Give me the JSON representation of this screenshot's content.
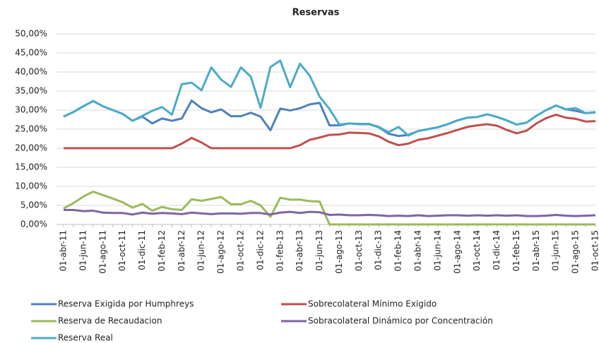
{
  "chart_data": {
    "type": "line",
    "title": "Reservas",
    "categories": [
      "01-abr-11",
      null,
      "01-jun-11",
      null,
      "01-ago-11",
      null,
      "01-oct-11",
      null,
      "01-dic-11",
      null,
      "01-feb-12",
      null,
      "01-abr-12",
      null,
      "01-jun-12",
      null,
      "01-ago-12",
      null,
      "01-oct-12",
      null,
      "01-dic-12",
      null,
      "01-feb-13",
      null,
      "01-abr-13",
      null,
      "01-jun-13",
      null,
      "01-ago-13",
      null,
      "01-oct-13",
      null,
      "01-dic-13",
      null,
      "01-feb-14",
      null,
      "01-abr-14",
      null,
      "01-jun-14",
      null,
      "01-ago-14",
      null,
      "01-oct-14",
      null,
      "01-dic-14",
      null,
      "01-feb-15",
      null,
      "01-abr-15",
      null,
      "01-jun-15",
      null,
      "01-ago-15",
      null,
      "01-oct-15"
    ],
    "series": [
      {
        "name": "Reserva Exigida por Humphreys",
        "color": "#4f81bd",
        "values": [
          28.3,
          29.5,
          31,
          32.4,
          31,
          30,
          29,
          27.2,
          28.3,
          26.5,
          27.8,
          27.2,
          27.8,
          32.5,
          30.5,
          29.4,
          30.2,
          28.4,
          28.4,
          29.3,
          28.3,
          24.7,
          30.4,
          29.9,
          30.5,
          31.5,
          31.9,
          26,
          26,
          26.5,
          26.3,
          26.3,
          25.5,
          23.8,
          23.2,
          23.5,
          24.5,
          25,
          25.5,
          26.3,
          27.3,
          28,
          28.2,
          28.9,
          28.2,
          27.3,
          26.2,
          26.7,
          28.5,
          30,
          31.2,
          30.2,
          29.8,
          29.2,
          29.4
        ]
      },
      {
        "name": "Sobrecolateral Mínimo Exigido",
        "color": "#c0504d",
        "values": [
          20,
          20,
          20,
          20,
          20,
          20,
          20,
          20,
          20,
          20,
          20,
          20,
          21.2,
          22.7,
          21.5,
          20,
          20,
          20,
          20,
          20,
          20,
          20,
          20,
          20,
          20.8,
          22.2,
          22.8,
          23.5,
          23.6,
          24.1,
          24,
          23.9,
          23.1,
          21.7,
          20.8,
          21.2,
          22.2,
          22.6,
          23.3,
          24,
          24.8,
          25.6,
          26,
          26.3,
          25.9,
          24.8,
          23.9,
          24.6,
          26.5,
          27.9,
          28.8,
          28,
          27.7,
          27,
          27.1
        ]
      },
      {
        "name": "Reserva de Recaudacion",
        "color": "#9bbb59",
        "values": [
          4.2,
          5.6,
          7.3,
          8.6,
          7.7,
          6.8,
          5.8,
          4.4,
          5.4,
          3.6,
          4.6,
          4.0,
          3.8,
          6.6,
          6.2,
          6.7,
          7.2,
          5.3,
          5.3,
          6.2,
          5.0,
          2.0,
          7.0,
          6.5,
          6.5,
          6.1,
          6.0,
          0,
          0,
          0,
          0,
          0,
          0,
          0,
          0,
          0,
          0,
          0,
          0,
          0,
          0,
          0,
          0,
          0,
          0,
          0,
          0,
          0,
          0,
          0,
          0,
          0,
          0,
          0,
          0
        ]
      },
      {
        "name": "Sobracolateral Dinámico por Concentración",
        "color": "#8064a2",
        "values": [
          3.8,
          3.8,
          3.5,
          3.6,
          3.1,
          3.0,
          3.0,
          2.6,
          3.1,
          2.8,
          3.0,
          2.9,
          2.7,
          3.1,
          2.9,
          2.7,
          2.9,
          2.9,
          2.8,
          3.0,
          3.0,
          2.6,
          3.1,
          3.3,
          3.0,
          3.3,
          3.2,
          2.5,
          2.6,
          2.4,
          2.4,
          2.5,
          2.4,
          2.2,
          2.3,
          2.2,
          2.4,
          2.2,
          2.3,
          2.4,
          2.4,
          2.3,
          2.4,
          2.3,
          2.4,
          2.3,
          2.4,
          2.2,
          2.2,
          2.3,
          2.5,
          2.3,
          2.2,
          2.3,
          2.4
        ]
      },
      {
        "name": "Reserva Real",
        "color": "#4bacc6",
        "values": [
          28.3,
          29.5,
          31,
          32.4,
          31,
          30,
          29,
          27.2,
          28.5,
          29.8,
          30.8,
          28.8,
          36.8,
          37.2,
          35.2,
          41.2,
          38,
          36.1,
          41.2,
          38.8,
          30.6,
          41.3,
          43,
          36,
          42.2,
          39,
          33.5,
          30.3,
          26.2,
          26.5,
          26.4,
          26.4,
          25.6,
          24.2,
          25.6,
          23.3,
          24.5,
          25,
          25.5,
          26.3,
          27.3,
          28,
          28.2,
          28.9,
          28.2,
          27.3,
          26.2,
          26.7,
          28.5,
          30,
          31.2,
          30.2,
          30.5,
          29.2,
          29.5
        ]
      }
    ],
    "ylim": [
      0,
      50
    ],
    "yticks": [
      {
        "value": 0,
        "label": "0,00%"
      },
      {
        "value": 5,
        "label": "5,00%"
      },
      {
        "value": 10,
        "label": "10,00%"
      },
      {
        "value": 15,
        "label": "15,00%"
      },
      {
        "value": 20,
        "label": "20,00%"
      },
      {
        "value": 25,
        "label": "25,00%"
      },
      {
        "value": 30,
        "label": "30,00%"
      },
      {
        "value": 35,
        "label": "35,00%"
      },
      {
        "value": 40,
        "label": "40,00%"
      },
      {
        "value": 45,
        "label": "45,00%"
      },
      {
        "value": 50,
        "label": "50,00%"
      }
    ],
    "grid": true,
    "legend": "bottom"
  }
}
